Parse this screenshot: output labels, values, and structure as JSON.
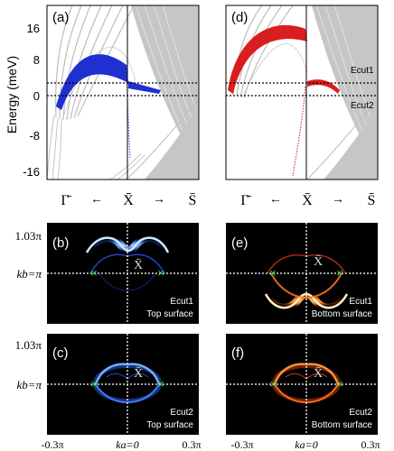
{
  "band_panels": {
    "energy_axis_label": "Energy (meV)",
    "energy_ticks": [
      "16",
      "8",
      "0",
      "-8",
      "-16"
    ],
    "k_labels": {
      "gamma": "Γ̄",
      "x": "X̄",
      "s": "S̄",
      "left_arrow": "←",
      "right_arrow": "→"
    },
    "left": {
      "label": "(a)"
    },
    "right": {
      "label": "(d)",
      "cut1": "Ecut1",
      "cut2": "Ecut2"
    }
  },
  "map_panels": {
    "y_tick_top": "1.03π",
    "y_tick_mid": "kb=π",
    "x_ticks": {
      "left": "-0.3π",
      "center": "ka=0",
      "right": "0.3π"
    },
    "x_point": "X̄",
    "b": {
      "label": "(b)",
      "cut": "Ecut1",
      "surface": "Top surface"
    },
    "c": {
      "label": "(c)",
      "cut": "Ecut2",
      "surface": "Top surface"
    },
    "e": {
      "label": "(e)",
      "cut": "Ecut1",
      "surface": "Bottom surface"
    },
    "f": {
      "label": "(f)",
      "cut": "Ecut2",
      "surface": "Bottom surface"
    }
  },
  "colors": {
    "top_surface": "#1f2fd0",
    "bottom_surface": "#e02020",
    "bulk": "#b8b8b8",
    "marker": "#3ddc3d"
  }
}
